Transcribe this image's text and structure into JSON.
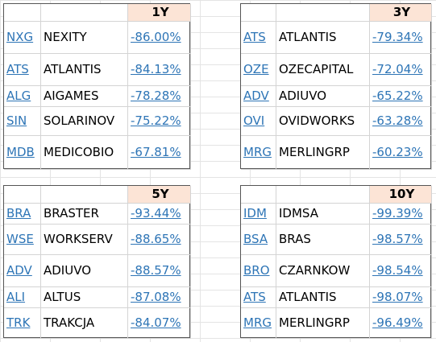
{
  "panels": [
    {
      "period": "1Y",
      "rows": [
        [
          "NXG",
          "NEXITY",
          "-86.00%"
        ],
        [
          "ATS",
          "ATLANTIS",
          "-84.13%"
        ],
        [
          "ALG",
          "AIGAMES",
          "-78.28%"
        ],
        [
          "SIN",
          "SOLARINOV",
          "-75.22%"
        ],
        [
          "MDB",
          "MEDICOBIO",
          "-67.81%"
        ]
      ]
    },
    {
      "period": "3Y",
      "rows": [
        [
          "ATS",
          "ATLANTIS",
          "-79.34%"
        ],
        [
          "OZE",
          "OZECAPITAL",
          "-72.04%"
        ],
        [
          "ADV",
          "ADIUVO",
          "-65.22%"
        ],
        [
          "OVI",
          "OVIDWORKS",
          "-63.28%"
        ],
        [
          "MRG",
          "MERLINGRP",
          "-60.23%"
        ]
      ]
    },
    {
      "period": "5Y",
      "rows": [
        [
          "BRA",
          "BRASTER",
          "-93.44%"
        ],
        [
          "WSE",
          "WORKSERV",
          "-88.65%"
        ],
        [
          "ADV",
          "ADIUVO",
          "-88.57%"
        ],
        [
          "ALI",
          "ALTUS",
          "-87.08%"
        ],
        [
          "TRK",
          "TRAKCJA",
          "-84.07%"
        ]
      ]
    },
    {
      "period": "10Y",
      "rows": [
        [
          "IDM",
          "IDMSA",
          "-99.39%"
        ],
        [
          "BSA",
          "BRAS",
          "-98.57%"
        ],
        [
          "BRO",
          "CZARNKOW",
          "-98.54%"
        ],
        [
          "ATS",
          "ATLANTIS",
          "-98.07%"
        ],
        [
          "MRG",
          "MERLINGRP",
          "-96.49%"
        ]
      ]
    }
  ]
}
